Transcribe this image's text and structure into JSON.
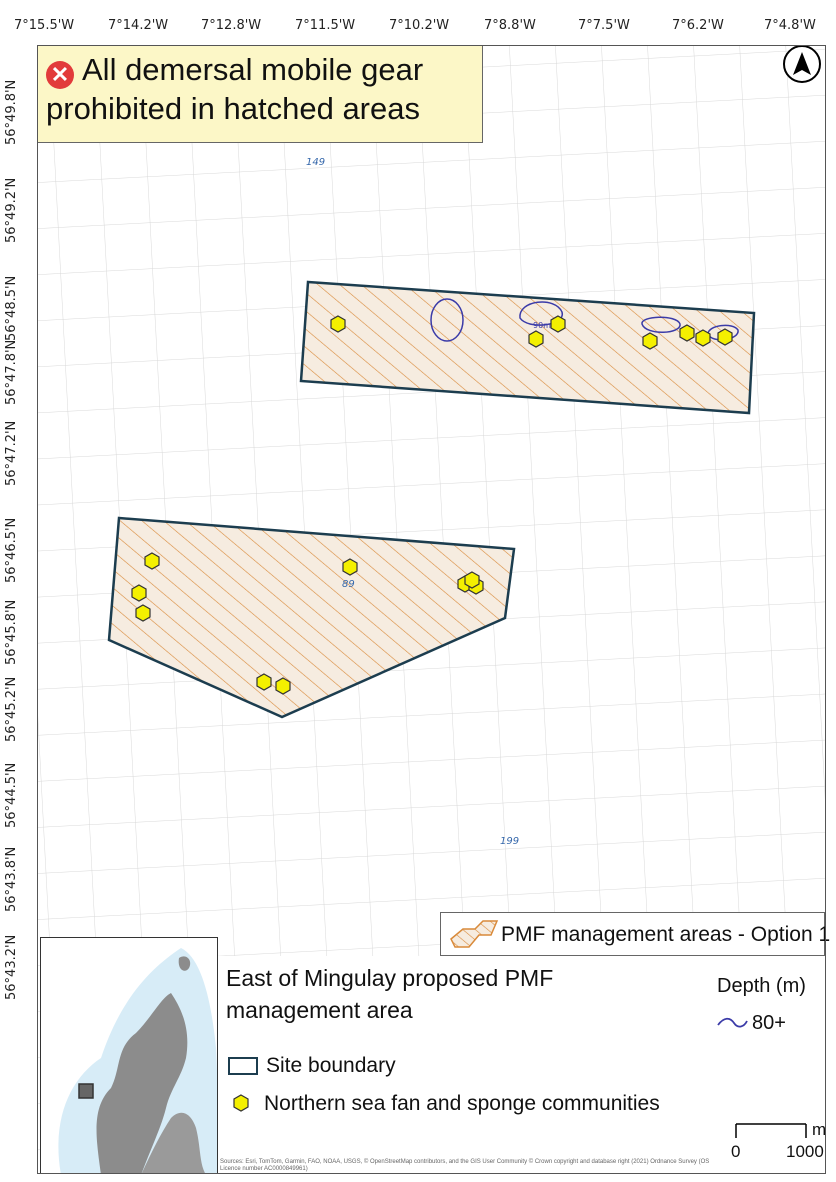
{
  "map": {
    "longitude_labels": [
      "7°15.5'W",
      "7°14.2'W",
      "7°12.8'W",
      "7°11.5'W",
      "7°10.2'W",
      "7°8.8'W",
      "7°7.5'W",
      "7°6.2'W",
      "7°4.8'W"
    ],
    "latitude_labels": [
      "56°49.8'N",
      "56°49.2'N",
      "56°48.5'N",
      "56°47.8'N",
      "56°47.2'N",
      "56°46.5'N",
      "56°45.8'N",
      "56°45.2'N",
      "56°44.5'N",
      "56°43.8'N",
      "56°43.2'N"
    ],
    "depth_soundings": [
      "149",
      "89",
      "199"
    ],
    "contour_label": "90m",
    "north_arrow": "north-arrow-icon"
  },
  "banner": {
    "icon": "prohibited-x-icon",
    "text": "All demersal mobile gear prohibited in hatched areas",
    "icon_color": "#e23b3b",
    "background": "#fcf7c7"
  },
  "legend": {
    "management_areas": "PMF management areas - Option 1",
    "title": "East of Mingulay proposed PMF management area",
    "site_boundary": "Site boundary",
    "sea_fan": "Northern sea fan and sponge communities",
    "depth_title": "Depth (m)",
    "depth_value": "80+"
  },
  "scale_bar": {
    "unit": "m",
    "start": "0",
    "end": "1000"
  },
  "attribution": "Sources: Esri, TomTom, Garmin, FAO, NOAA, USGS, © OpenStreetMap contributors, and the GIS User Community © Crown copyright and database right (2021) Ordnance Survey (OS Licence number AC0000849961)",
  "colors": {
    "site_boundary": "#1c3d4f",
    "hatch": "#d98a3a",
    "sea_fan_fill": "#f4f000",
    "depth_contour": "#3b3ba8",
    "grid": "#d8d8d8"
  }
}
